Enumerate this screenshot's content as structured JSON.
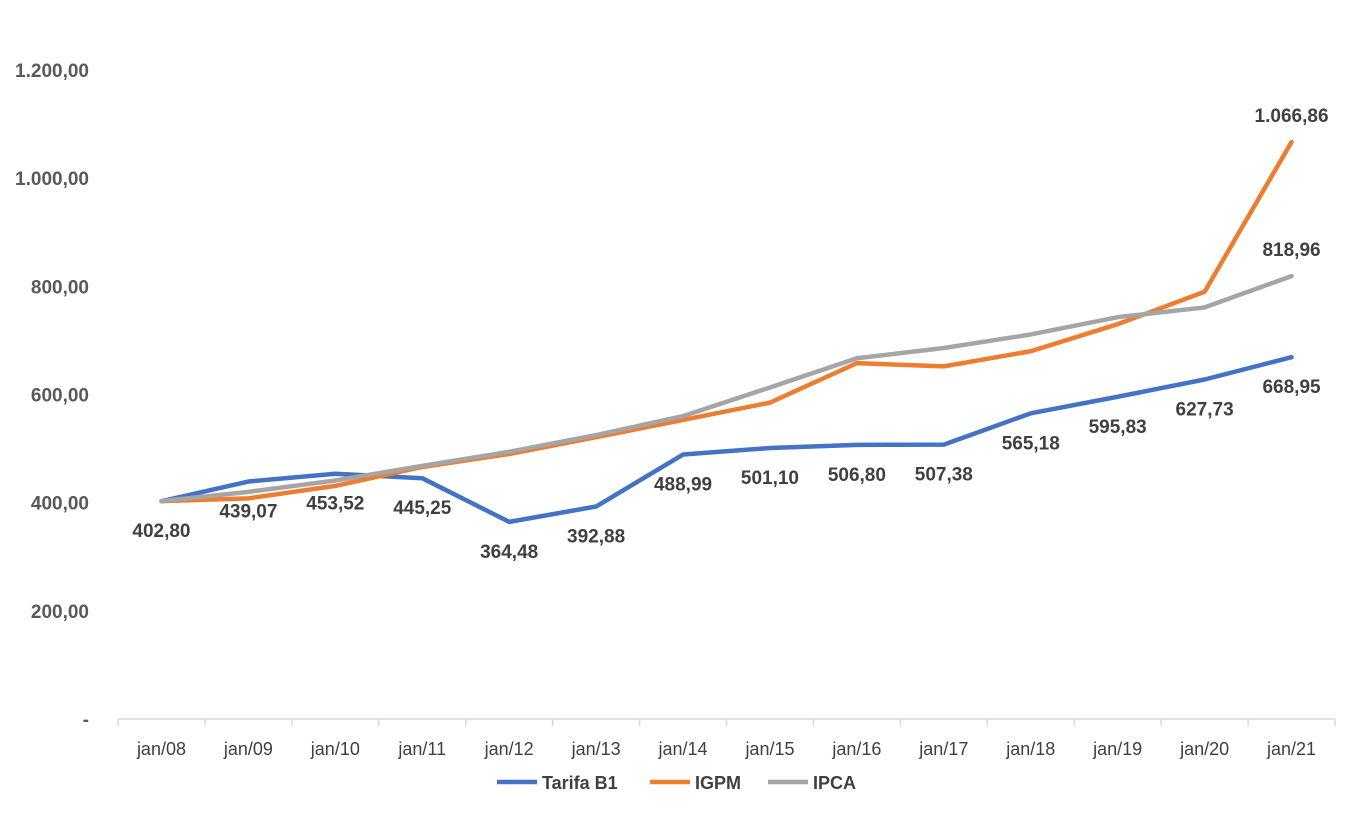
{
  "chart_data": {
    "type": "line",
    "title": "",
    "xlabel": "",
    "ylabel": "",
    "categories": [
      "jan/08",
      "jan/09",
      "jan/10",
      "jan/11",
      "jan/12",
      "jan/13",
      "jan/14",
      "jan/15",
      "jan/16",
      "jan/17",
      "jan/18",
      "jan/19",
      "jan/20",
      "jan/21"
    ],
    "ylim": [
      0,
      1200
    ],
    "yticks": [
      0,
      200,
      400,
      600,
      800,
      1000,
      1200
    ],
    "ytick_labels": [
      "-",
      "200,00",
      "400,00",
      "600,00",
      "800,00",
      "1.000,00",
      "1.200,00"
    ],
    "grid": false,
    "legend_position": "bottom",
    "series": [
      {
        "name": "Tarifa B1",
        "color": "#4472C4",
        "values": [
          402.8,
          439.07,
          453.52,
          445.25,
          364.48,
          392.88,
          488.99,
          501.1,
          506.8,
          507.38,
          565.18,
          595.83,
          627.73,
          668.95
        ],
        "labels": [
          "402,80",
          "439,07",
          "453,52",
          "445,25",
          "364,48",
          "392,88",
          "488,99",
          "501,10",
          "506,80",
          "507,38",
          "565,18",
          "595,83",
          "627,73",
          "668,95"
        ]
      },
      {
        "name": "IGPM",
        "color": "#ED7D31",
        "values": [
          402.8,
          408,
          431,
          466,
          490,
          521,
          553,
          585,
          658,
          652,
          680,
          730,
          790,
          1066.86
        ],
        "labels": [
          "",
          "",
          "",
          "",
          "",
          "",
          "",
          "",
          "",
          "",
          "",
          "",
          "",
          "1.066,86"
        ]
      },
      {
        "name": "IPCA",
        "color": "#A5A5A5",
        "values": [
          402.8,
          420,
          441,
          468,
          494,
          525,
          560,
          613,
          667,
          686,
          711,
          743,
          761,
          818.96
        ],
        "labels": [
          "",
          "",
          "",
          "",
          "",
          "",
          "",
          "",
          "",
          "",
          "",
          "",
          "",
          "818,96"
        ]
      }
    ]
  }
}
